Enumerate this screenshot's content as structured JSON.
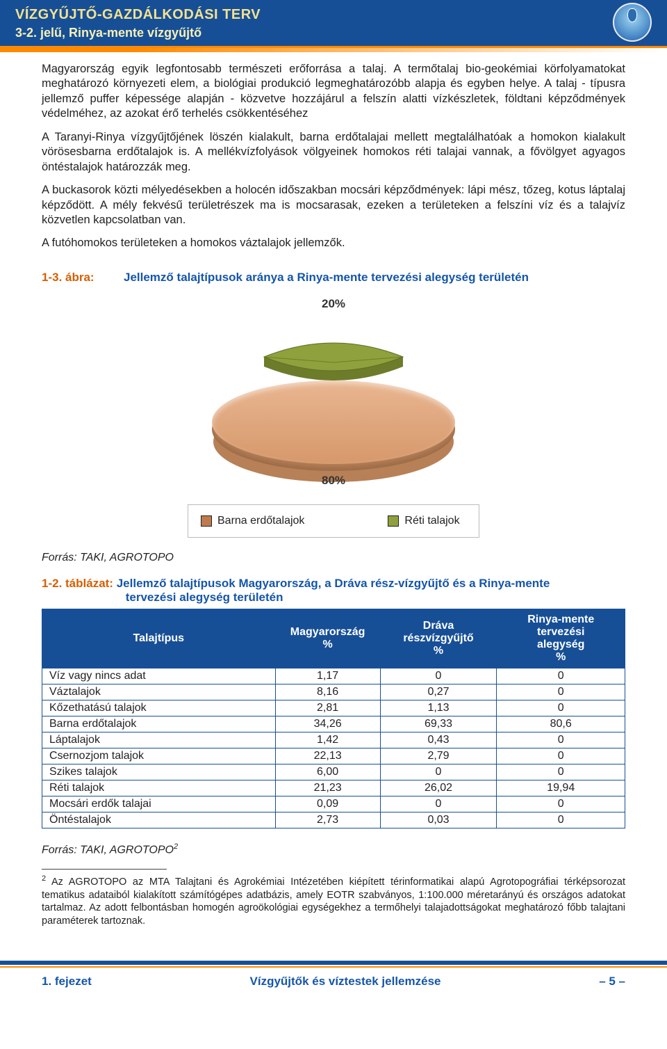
{
  "header": {
    "title1": "VÍZGYŰJTŐ-GAZDÁLKODÁSI TERV",
    "title2": "3-2. jelű, Rinya-mente vízgyűjtő"
  },
  "body": {
    "p1": "Magyarország egyik legfontosabb természeti erőforrása a talaj. A termőtalaj bio-geokémiai körfolyamatokat meghatározó környezeti elem, a biológiai produkció legmeghatározóbb alapja és egyben helye. A talaj - típusra jellemző puffer képessége alapján - közvetve hozzájárul a felszín alatti vízkészletek, földtani képződmények védelméhez, az azokat érő terhelés csökkentéséhez",
    "p2": "A Taranyi-Rinya vízgyűjtőjének löszén kialakult, barna erdőtalajai mellett megtalálhatóak a homokon kialakult vörösesbarna erdőtalajok is. A mellékvízfolyások völgyeinek homokos réti talajai vannak, a fővölgyet agyagos öntéstalajok határozzák meg.",
    "p3": "A buckasorok közti mélyedésekben a holocén időszakban mocsári képződmények: lápi mész, tőzeg, kotus láptalaj képződött. A mély fekvésű területrészek ma is mocsarasak, ezeken a területeken a felszíni víz és a talajvíz közvetlen kapcsolatban van.",
    "p4": "A futóhomokos területeken a homokos váztalajok jellemzők."
  },
  "figure": {
    "label_pre": "1-3. ábra:",
    "label_txt": "Jellemző talajtípusok aránya a Rinya-mente tervezési alegység területén",
    "pct_top": "20%",
    "pct_bot": "80%",
    "colors": {
      "wedge": "#8fa13c",
      "wedge_dark": "#6d7c2a",
      "disc_top": "#d6986b",
      "disc_base": "#c88b5e"
    },
    "legend": [
      {
        "swatch": "#c07a4e",
        "label": "Barna erdőtalajok"
      },
      {
        "swatch": "#8fa13c",
        "label": "Réti talajok"
      }
    ]
  },
  "source1": "Forrás: TAKI, AGROTOPO",
  "table": {
    "label_pre": "1-2. táblázat:",
    "label_txt_l1": "Jellemző talajtípusok Magyarország, a Dráva rész-vízgyűjtő és a Rinya-mente",
    "label_txt_l2": "tervezési alegység területén",
    "head": {
      "c0": "Talajtípus",
      "c1_l1": "Magyarország",
      "c1_l2": "%",
      "c2_l1": "Dráva",
      "c2_l2": "részvízgyűjtő",
      "c2_l3": "%",
      "c3_l1": "Rinya-mente",
      "c3_l2": "tervezési",
      "c3_l3": "alegység",
      "c3_l4": "%"
    },
    "rows": [
      [
        "Víz vagy nincs adat",
        "1,17",
        "0",
        "0"
      ],
      [
        "Váztalajok",
        "8,16",
        "0,27",
        "0"
      ],
      [
        "Kőzethatású talajok",
        "2,81",
        "1,13",
        "0"
      ],
      [
        "Barna erdőtalajok",
        "34,26",
        "69,33",
        "80,6"
      ],
      [
        "Láptalajok",
        "1,42",
        "0,43",
        "0"
      ],
      [
        "Csernozjom talajok",
        "22,13",
        "2,79",
        "0"
      ],
      [
        "Szikes talajok",
        "6,00",
        "0",
        "0"
      ],
      [
        "Réti talajok",
        "21,23",
        "26,02",
        "19,94"
      ],
      [
        "Mocsári erdők talajai",
        "0,09",
        "0",
        "0"
      ],
      [
        "Öntéstalajok",
        "2,73",
        "0,03",
        "0"
      ]
    ],
    "colwidths": [
      "40%",
      "18%",
      "20%",
      "22%"
    ]
  },
  "source2_pre": "Forrás: TAKI, AGROTOPO",
  "source2_sup": "2",
  "footnote": {
    "sup": "2",
    "text": " Az AGROTOPO az MTA Talajtani és Agrokémiai Intézetében kiépített térinformatikai alapú Agrotopográfiai térképsorozat tematikus adataiból kialakított számítógépes adatbázis, amely EOTR szabványos, 1:100.000 méretarányú és országos adatokat tartalmaz. Az adott felbontásban homogén agroökológiai egységekhez a termőhelyi talajadottságokat meghatározó főbb talajtani paraméterek tartoznak."
  },
  "footer": {
    "left": "1. fejezet",
    "mid": "Vízgyűjtők és víztestek jellemzése",
    "right": "– 5 –"
  }
}
